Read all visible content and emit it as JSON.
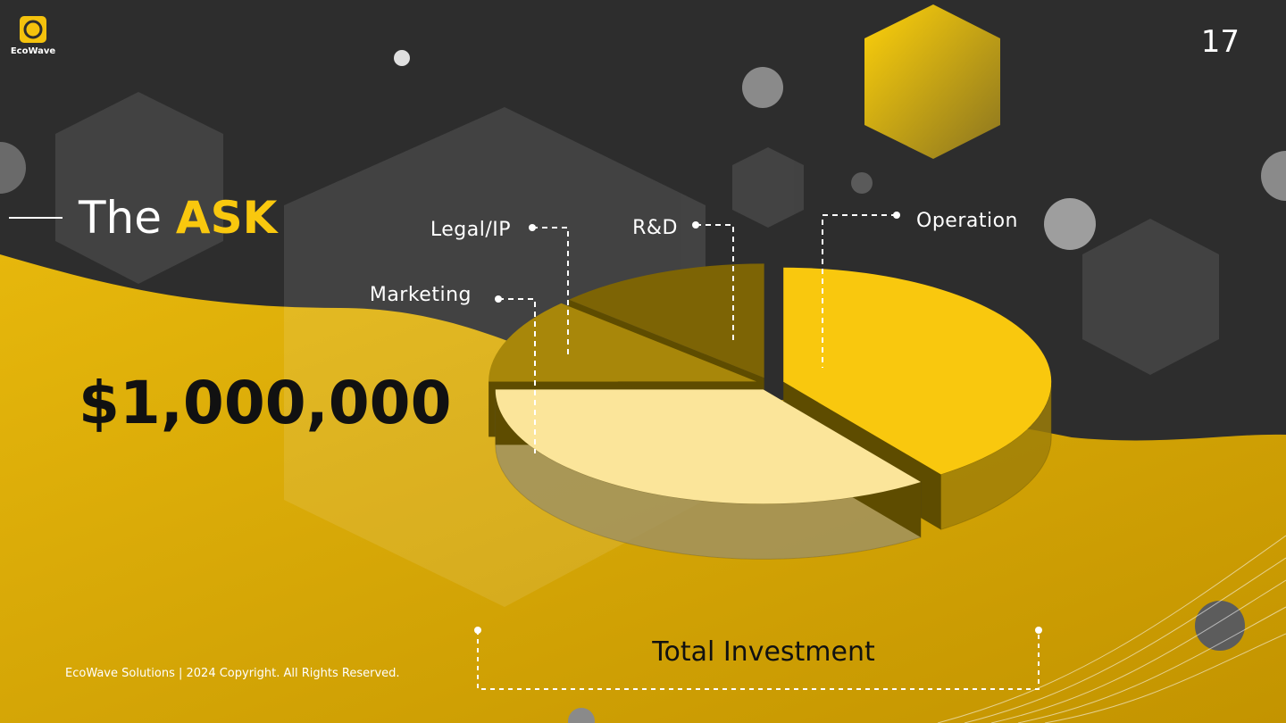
{
  "header": {
    "logo": "EcoWave",
    "page_number": "17"
  },
  "title": {
    "lead": "The",
    "highlight": "ASK"
  },
  "amount": "$1,000,000",
  "caption": "Total Investment",
  "footer": "EcoWave Solutions | 2024 Copyright. All Rights Reserved.",
  "chart_data": {
    "type": "pie",
    "categories": [
      "Operation",
      "Marketing",
      "Legal/IP",
      "R&D"
    ],
    "values": [
      40,
      35,
      12,
      13
    ],
    "colors": [
      "#f9c80e",
      "#fbe59a",
      "#a8870a",
      "#7d6405"
    ]
  }
}
